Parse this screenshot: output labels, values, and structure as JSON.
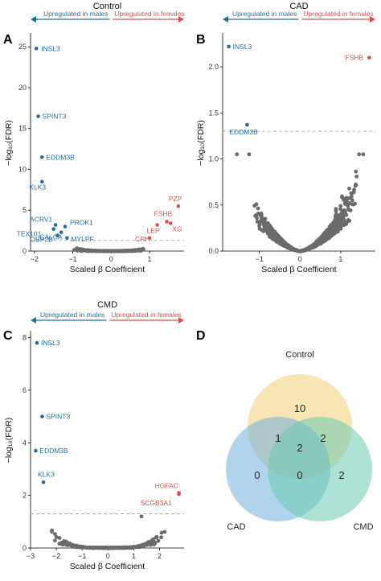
{
  "colors": {
    "male": "#1f6f9e",
    "female": "#d6504c",
    "neutral": "#6b6b6b",
    "dash": "#aaaaaa",
    "venn_control": "#f0cf77",
    "venn_cad": "#6fb0de",
    "venn_cmd": "#6ccbb0"
  },
  "labels": {
    "up_males": "Upregulated in males",
    "up_females": "Upregulated in females"
  },
  "chart_data": [
    {
      "type": "scatter",
      "panel": "A",
      "title": "Control",
      "xlabel": "Scaled β Coefficient",
      "ylabel": "−log₁₀(FDR)",
      "xlim": [
        -2.1,
        1.9
      ],
      "ylim": [
        0,
        26.5
      ],
      "xticks": [
        -2,
        -1,
        0,
        1
      ],
      "yticks": [
        0,
        5,
        10,
        15,
        20,
        25
      ],
      "threshold": 1.3,
      "points": [
        {
          "x": -1.95,
          "y": 24.8,
          "label": "INSL3",
          "group": "male"
        },
        {
          "x": -1.9,
          "y": 16.5,
          "label": "SPINT3",
          "group": "male"
        },
        {
          "x": -1.8,
          "y": 11.5,
          "label": "EDDM3B",
          "group": "male"
        },
        {
          "x": -1.8,
          "y": 8.5,
          "label": "KLK3",
          "group": "male"
        },
        {
          "x": -1.45,
          "y": 3.2,
          "label": "ACRV1",
          "group": "male"
        },
        {
          "x": -1.5,
          "y": 2.7,
          "label": "TEX101",
          "group": "male"
        },
        {
          "x": -1.2,
          "y": 3.0,
          "label": "PROK1",
          "group": "male"
        },
        {
          "x": -1.3,
          "y": 2.3,
          "label": "CALCA",
          "group": "male"
        },
        {
          "x": -1.4,
          "y": 1.9,
          "label": "OBP2B",
          "group": "male"
        },
        {
          "x": -1.15,
          "y": 1.6,
          "label": "MYLPF",
          "group": "male"
        },
        {
          "x": 1.75,
          "y": 5.5,
          "label": "PZP",
          "group": "female"
        },
        {
          "x": 1.45,
          "y": 3.6,
          "label": "FSHB",
          "group": "female"
        },
        {
          "x": 1.55,
          "y": 3.4,
          "label": "XG",
          "group": "female"
        },
        {
          "x": 1.2,
          "y": 3.2,
          "label": "LEP",
          "group": "female"
        },
        {
          "x": 1.0,
          "y": 1.6,
          "label": "CRH",
          "group": "female"
        }
      ]
    },
    {
      "type": "scatter",
      "panel": "B",
      "title": "CAD",
      "xlabel": "Scaled β Coefficient",
      "ylabel": "−log₁₀(FDR)",
      "xlim": [
        -1.9,
        1.85
      ],
      "ylim": [
        0,
        2.35
      ],
      "xticks": [
        -1,
        0,
        1
      ],
      "yticks": [
        0.0,
        0.5,
        1.0,
        1.5,
        2.0
      ],
      "threshold": 1.3,
      "points": [
        {
          "x": -1.75,
          "y": 2.22,
          "label": "INSL3",
          "group": "male"
        },
        {
          "x": 1.7,
          "y": 2.1,
          "label": "FSHB",
          "group": "female"
        },
        {
          "x": -1.3,
          "y": 1.37,
          "label": "EDDM3B",
          "group": "male"
        },
        {
          "x": -1.55,
          "y": 1.05,
          "label": "",
          "group": "neutral"
        },
        {
          "x": -1.25,
          "y": 1.05,
          "label": "",
          "group": "neutral"
        },
        {
          "x": 1.45,
          "y": 1.05,
          "label": "",
          "group": "neutral"
        },
        {
          "x": 1.55,
          "y": 1.05,
          "label": "",
          "group": "neutral"
        }
      ]
    },
    {
      "type": "scatter",
      "panel": "C",
      "title": "CMD",
      "xlabel": "Scaled β Coefficient",
      "ylabel": "−log₁₀(FDR)",
      "xlim": [
        -3.0,
        2.95
      ],
      "ylim": [
        0,
        8.2
      ],
      "xticks": [
        -3,
        -2,
        -1,
        0,
        1,
        2
      ],
      "yticks": [
        0,
        2,
        4,
        6,
        8
      ],
      "threshold": 1.3,
      "points": [
        {
          "x": -2.75,
          "y": 7.8,
          "label": "INSL3",
          "group": "male"
        },
        {
          "x": -2.55,
          "y": 5.0,
          "label": "SPINT3",
          "group": "male"
        },
        {
          "x": -2.8,
          "y": 3.7,
          "label": "EDDM3B",
          "group": "male"
        },
        {
          "x": -2.5,
          "y": 2.5,
          "label": "KLK3",
          "group": "male"
        },
        {
          "x": 2.75,
          "y": 2.1,
          "label": "HGFAC",
          "group": "female"
        },
        {
          "x": 2.75,
          "y": 2.05,
          "label": "SCGB3A1",
          "group": "female"
        },
        {
          "x": 1.3,
          "y": 1.2,
          "label": "",
          "group": "neutral"
        }
      ]
    }
  ],
  "venn": {
    "panel": "D",
    "sets": [
      "Control",
      "CAD",
      "CMD"
    ],
    "regions": {
      "control_only": "10",
      "cad_only": "0",
      "cmd_only": "2",
      "control_cad": "1",
      "control_cmd": "2",
      "cad_cmd": "0",
      "all": "2"
    }
  }
}
